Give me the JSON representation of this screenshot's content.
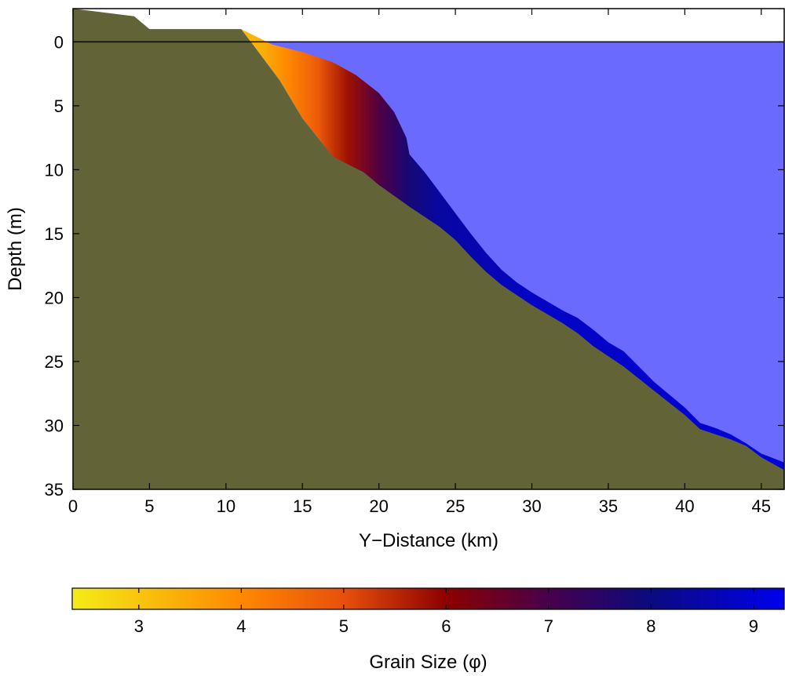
{
  "chart_data": {
    "type": "area",
    "xlabel": "Y−Distance (km)",
    "ylabel": "Depth (m)",
    "xlim": [
      0,
      46.5
    ],
    "ylim": [
      35,
      -2.6
    ],
    "y_axis_reversed": true,
    "x_ticks": [
      0,
      5,
      10,
      15,
      20,
      25,
      30,
      35,
      40,
      45
    ],
    "y_ticks": [
      0,
      5,
      10,
      15,
      20,
      25,
      30,
      35
    ],
    "sea_level": 0,
    "bathymetry": {
      "x": [
        0,
        4,
        5,
        11,
        13.5,
        15,
        17,
        19,
        20,
        22,
        24,
        25,
        26,
        27,
        28,
        29,
        30,
        31,
        32,
        33,
        34,
        35,
        36,
        38,
        40,
        41,
        42,
        43,
        44,
        45,
        46.5
      ],
      "depth": [
        -2.6,
        -2.0,
        -1.0,
        -1.0,
        3.0,
        6.0,
        9.0,
        10.2,
        11.2,
        12.9,
        14.5,
        15.5,
        16.8,
        18.0,
        19.0,
        19.8,
        20.6,
        21.3,
        22.0,
        22.8,
        23.8,
        24.6,
        25.4,
        27.3,
        29.2,
        30.3,
        30.7,
        31.1,
        31.6,
        32.5,
        33.5
      ]
    },
    "sediment_top": {
      "x": [
        0,
        4,
        5,
        11,
        13,
        15,
        17,
        18.5,
        20,
        21,
        21.8,
        22,
        23,
        24,
        25,
        26,
        27,
        28,
        29,
        30,
        31,
        32,
        33,
        34,
        35,
        36,
        38,
        40,
        41,
        42,
        43,
        44,
        45,
        46.5
      ],
      "depth": [
        -2.6,
        -2.0,
        -1.0,
        -1.0,
        0.2,
        0.8,
        1.6,
        2.6,
        4.0,
        5.5,
        7.5,
        8.8,
        10.2,
        11.8,
        13.4,
        15.0,
        16.5,
        17.8,
        18.8,
        19.6,
        20.3,
        21.0,
        21.6,
        22.5,
        23.5,
        24.2,
        26.6,
        28.6,
        29.8,
        30.2,
        30.7,
        31.4,
        32.2,
        32.9
      ]
    },
    "grain_size_phi": {
      "x": [
        0,
        5,
        10,
        12.5,
        14,
        16,
        18,
        20,
        22,
        24,
        30,
        46.5
      ],
      "phi": [
        2.5,
        2.6,
        2.9,
        3.4,
        4.0,
        4.8,
        5.8,
        6.9,
        7.8,
        8.4,
        8.8,
        9.0
      ]
    },
    "colors": {
      "substrate": "#626437",
      "water": "#6a6aff",
      "waterline": "#000000"
    },
    "colorbar": {
      "label": "Grain Size (φ)",
      "range": [
        2.35,
        9.3
      ],
      "ticks": [
        3,
        4,
        5,
        6,
        7,
        8,
        9
      ],
      "colormap": [
        {
          "value": 2.35,
          "color": "#f4ec17"
        },
        {
          "value": 4.0,
          "color": "#ff8800"
        },
        {
          "value": 5.0,
          "color": "#e8500c"
        },
        {
          "value": 6.0,
          "color": "#8c0000"
        },
        {
          "value": 7.0,
          "color": "#48004c"
        },
        {
          "value": 8.0,
          "color": "#0a0a80"
        },
        {
          "value": 9.3,
          "color": "#0000ee"
        }
      ]
    }
  }
}
